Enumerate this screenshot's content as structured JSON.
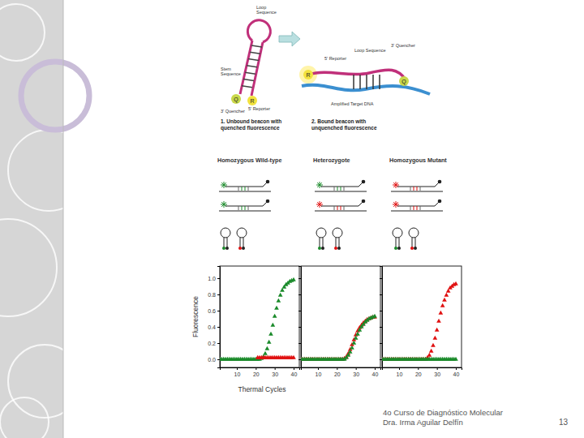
{
  "chart_data": [
    {
      "type": "scatter",
      "marker": "triangle",
      "ylabel": "Fluorescence",
      "xlabel": "Thermal Cycles",
      "x": [
        1,
        2,
        3,
        4,
        5,
        6,
        7,
        8,
        9,
        10,
        11,
        12,
        13,
        14,
        15,
        16,
        17,
        18,
        19,
        20,
        21,
        22,
        23,
        24,
        25,
        26,
        27,
        28,
        29,
        30,
        31,
        32,
        33,
        34,
        35,
        36,
        37,
        38,
        39,
        40
      ],
      "xlim": [
        1,
        43
      ],
      "xticks": [
        10,
        20,
        30,
        40
      ],
      "ylim": [
        -0.1,
        1.15
      ],
      "yticks": [
        {
          "value": 0,
          "label": "0.0"
        },
        {
          "value": 0.2,
          "label": "0.2"
        },
        {
          "value": 0.4,
          "label": "0.4"
        },
        {
          "value": 0.6,
          "label": "0.6"
        },
        {
          "value": 0.8,
          "label": "0.8"
        },
        {
          "value": 1,
          "label": "1.0"
        }
      ],
      "series": [
        {
          "color": "#1a8a2a",
          "values": [
            0,
            0,
            0,
            0,
            0,
            0,
            0,
            0,
            0,
            0,
            0,
            0,
            0,
            0,
            0,
            0,
            0,
            0,
            0,
            0,
            0,
            0,
            0.01,
            0.03,
            0.07,
            0.13,
            0.21,
            0.31,
            0.42,
            0.53,
            0.63,
            0.72,
            0.79,
            0.85,
            0.89,
            0.92,
            0.94,
            0.96,
            0.97,
            0.98
          ]
        },
        {
          "color": "#e01010",
          "values": [
            null,
            null,
            null,
            null,
            null,
            null,
            null,
            null,
            null,
            null,
            null,
            null,
            null,
            null,
            null,
            null,
            null,
            null,
            null,
            null,
            0.02,
            0.02,
            0.02,
            0.02,
            0.02,
            0.02,
            0.02,
            0.02,
            0.02,
            0.02,
            0.02,
            0.02,
            0.02,
            0.02,
            0.02,
            0.02,
            0.02,
            0.02,
            0.02,
            0.02
          ]
        }
      ]
    },
    {
      "type": "scatter",
      "marker": "triangle",
      "tick_labels": "x",
      "x": [
        1,
        2,
        3,
        4,
        5,
        6,
        7,
        8,
        9,
        10,
        11,
        12,
        13,
        14,
        15,
        16,
        17,
        18,
        19,
        20,
        21,
        22,
        23,
        24,
        25,
        26,
        27,
        28,
        29,
        30,
        31,
        32,
        33,
        34,
        35,
        36,
        37,
        38,
        39,
        40
      ],
      "xlim": [
        1,
        43
      ],
      "xticks": [
        10,
        20,
        30,
        40
      ],
      "ylim": [
        -0.1,
        1.15
      ],
      "yticks": [
        0,
        0.2,
        0.4,
        0.6,
        0.8,
        1
      ],
      "series": [
        {
          "color": "#e01010",
          "values": [
            0,
            0,
            0,
            0,
            0,
            0,
            0,
            0,
            0,
            0,
            0,
            0,
            0,
            0,
            0,
            0,
            0,
            0,
            0,
            0,
            0,
            0,
            0,
            0.01,
            0.03,
            0.07,
            0.12,
            0.18,
            0.24,
            0.3,
            0.35,
            0.39,
            0.42,
            0.45,
            0.47,
            0.49,
            0.5,
            0.51,
            0.52,
            0.52
          ]
        },
        {
          "color": "#1a8a2a",
          "values": [
            0,
            0,
            0,
            0,
            0,
            0,
            0,
            0,
            0,
            0,
            0,
            0,
            0,
            0,
            0,
            0,
            0,
            0,
            0,
            0,
            0,
            0,
            0,
            0,
            0.02,
            0.05,
            0.09,
            0.14,
            0.2,
            0.26,
            0.31,
            0.36,
            0.4,
            0.43,
            0.46,
            0.48,
            0.5,
            0.51,
            0.52,
            0.53
          ]
        }
      ]
    },
    {
      "type": "scatter",
      "marker": "triangle",
      "tick_labels": "x",
      "x": [
        1,
        2,
        3,
        4,
        5,
        6,
        7,
        8,
        9,
        10,
        11,
        12,
        13,
        14,
        15,
        16,
        17,
        18,
        19,
        20,
        21,
        22,
        23,
        24,
        25,
        26,
        27,
        28,
        29,
        30,
        31,
        32,
        33,
        34,
        35,
        36,
        37,
        38,
        39,
        40
      ],
      "xlim": [
        1,
        43
      ],
      "xticks": [
        10,
        20,
        30,
        40
      ],
      "ylim": [
        -0.1,
        1.15
      ],
      "yticks": [
        0,
        0.2,
        0.4,
        0.6,
        0.8,
        1
      ],
      "series": [
        {
          "color": "#e01010",
          "values": [
            0,
            0,
            0,
            0,
            0,
            0,
            0,
            0,
            0,
            0,
            0,
            0,
            0,
            0,
            0,
            0,
            0,
            0,
            0,
            0,
            0,
            0,
            0,
            0,
            0.02,
            0.05,
            0.1,
            0.17,
            0.26,
            0.36,
            0.47,
            0.57,
            0.66,
            0.73,
            0.79,
            0.84,
            0.88,
            0.9,
            0.92,
            0.93
          ]
        },
        {
          "color": "#1a8a2a",
          "values": [
            0,
            0,
            0,
            0,
            0,
            0,
            0,
            0,
            0,
            0,
            0,
            0,
            0,
            0,
            0,
            0,
            0,
            0,
            0,
            0,
            0,
            0,
            0,
            0,
            0,
            0,
            0,
            0,
            0,
            0,
            0,
            0,
            0,
            0,
            0,
            0,
            0,
            0,
            0,
            0
          ]
        }
      ]
    }
  ],
  "diagram": {
    "unbound": {
      "loop_label": [
        "Loop",
        "Sequence"
      ],
      "stem_label": [
        "Stem",
        "Sequence"
      ],
      "quencher_label": "3' Quencher",
      "reporter_label": "5' Reporter",
      "q": "Q",
      "r": "R",
      "caption": [
        "1. Unbound beacon with",
        "quenched fluorescence"
      ]
    },
    "bound": {
      "loop_label": "Loop Sequence",
      "reporter_label": "5' Reporter",
      "quencher_label": "3' Quencher",
      "target_label": "Amplified Target DNA",
      "q": "Q",
      "r": "R",
      "caption": [
        "2. Bound beacon with",
        "unquenched fluorescence"
      ]
    },
    "genotypes": [
      "Homozygous Wild-type",
      "Heterozygote",
      "Homozygous Mutant"
    ]
  },
  "footer": {
    "lines": [
      "4o Curso de Diagnóstico Molecular",
      "Dra. Irma Aguilar Delfín"
    ],
    "page": "13"
  }
}
